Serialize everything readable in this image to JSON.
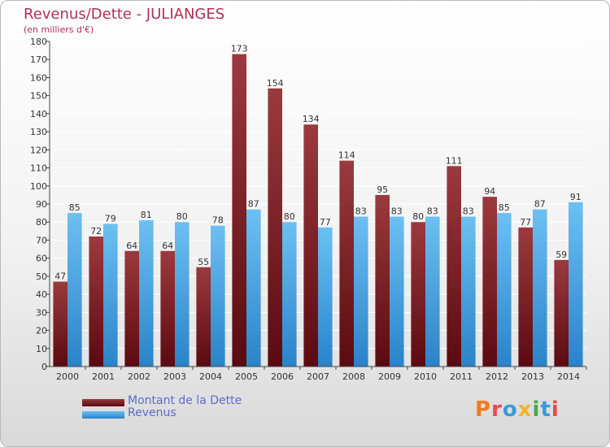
{
  "header": {
    "title": "Revenus/Dette - JULIANGES",
    "subtitle": "(en milliers d'€)"
  },
  "legend": {
    "debt_label": "Montant de la Dette",
    "revenue_label": "Revenus"
  },
  "logo": {
    "text": "Proxiti",
    "colors": [
      "#f07b1f",
      "#e94b4b",
      "#3c9ad6",
      "#f2b52a",
      "#4aa84a",
      "#3c9ad6",
      "#e94b4b"
    ]
  },
  "colors": {
    "debt_top": "#9b3a3e",
    "debt_bottom": "#5a0a10",
    "revenue_top": "#6cc0f2",
    "revenue_bottom": "#2a83c9",
    "axis": "#444444",
    "grid": "#ffffff"
  },
  "chart_data": {
    "type": "bar",
    "categories": [
      "2000",
      "2001",
      "2002",
      "2003",
      "2004",
      "2005",
      "2006",
      "2007",
      "2008",
      "2009",
      "2010",
      "2011",
      "2012",
      "2013",
      "2014"
    ],
    "series": [
      {
        "name": "Montant de la Dette",
        "values": [
          47,
          72,
          64,
          64,
          55,
          173,
          154,
          134,
          114,
          95,
          80,
          111,
          94,
          77,
          59
        ]
      },
      {
        "name": "Revenus",
        "values": [
          85,
          79,
          81,
          80,
          78,
          87,
          80,
          77,
          83,
          83,
          83,
          83,
          85,
          87,
          91
        ]
      }
    ],
    "ylim": [
      0,
      180
    ],
    "ytick_step": 10,
    "grid": true,
    "legend_position": "bottom-left",
    "data_labels": true
  }
}
